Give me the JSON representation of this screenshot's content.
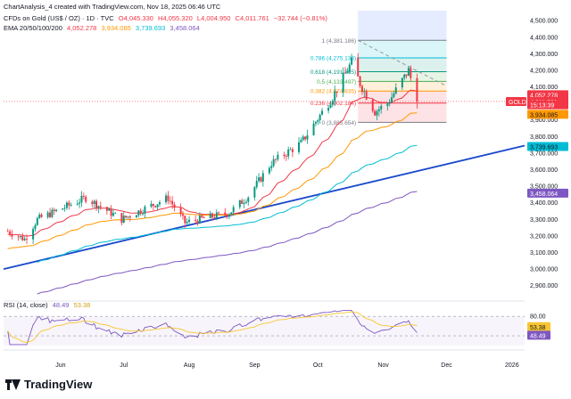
{
  "header": {
    "created_line": "ChartAnalysis_4 created with TradingView.com, Nov 18, 2025 06:46 UTC",
    "symbol": "CFDs on Gold (US$ / OZ) · 1D · TVC",
    "ohlc": {
      "o": "O4,045.330",
      "h": "H4,055.320",
      "l": "L4,004.950",
      "c": "C4,011.761",
      "chg": "−32.744 (−0.81%)"
    },
    "ema_label": "EMA 20/50/100/200",
    "ema_values": [
      "4,052.278",
      "3,934.085",
      "3,739.693",
      "3,458.064"
    ],
    "rsi_label": "RSI (14, close)",
    "rsi_values": [
      "48.49",
      "53.38"
    ]
  },
  "footer": {
    "brand": "TradingView"
  },
  "colors": {
    "up": "#089981",
    "down": "#f23645",
    "ema20": "#f23645",
    "ema50": "#ff9800",
    "ema100": "#00bcd4",
    "ema200": "#7e57c2",
    "trend": "#1848cc",
    "rsi": "#7e57c2",
    "rsi_ma": "#f7c531"
  },
  "chart_data": {
    "type": "candlestick",
    "title": "CFDs on Gold (US$ / OZ) · 1D · TVC",
    "y_ticks": [
      "4,500.000",
      "4,400.000",
      "4,300.000",
      "4,200.000",
      "4,100.000",
      "4,000.000",
      "3,900.000",
      "3,800.000",
      "3,700.000",
      "3,600.000",
      "3,500.000",
      "3,400.000",
      "3,300.000",
      "3,200.000",
      "3,100.000",
      "3,000.000",
      "2,900.000"
    ],
    "y_tick_values": [
      4500,
      4400,
      4300,
      4200,
      4100,
      4000,
      3900,
      3800,
      3700,
      3600,
      3500,
      3400,
      3300,
      3200,
      3100,
      3000,
      2900
    ],
    "ylim": [
      2850,
      4560
    ],
    "x_labels": [
      "Jun",
      "Jul",
      "Aug",
      "Sep",
      "Oct",
      "Nov",
      "Dec",
      "2026"
    ],
    "x_label_dates": [
      "2025-06-01",
      "2025-07-01",
      "2025-08-01",
      "2025-09-01",
      "2025-10-01",
      "2025-11-01",
      "2025-12-01",
      "2026-01-01"
    ],
    "x_range": [
      "2025-05-05",
      "2026-01-07"
    ],
    "key_points": [
      {
        "date": "2025-05-15",
        "close": 3180
      },
      {
        "date": "2025-05-21",
        "close": 3300
      },
      {
        "date": "2025-06-13",
        "close": 3430
      },
      {
        "date": "2025-06-30",
        "close": 3300
      },
      {
        "date": "2025-07-22",
        "close": 3430
      },
      {
        "date": "2025-07-30",
        "close": 3280
      },
      {
        "date": "2025-08-20",
        "close": 3340
      },
      {
        "date": "2025-08-29",
        "close": 3440
      },
      {
        "date": "2025-09-09",
        "close": 3640
      },
      {
        "date": "2025-09-23",
        "close": 3760
      },
      {
        "date": "2025-10-08",
        "close": 4040
      },
      {
        "date": "2025-10-17",
        "close": 4250
      },
      {
        "date": "2025-10-21",
        "close": 4120
      },
      {
        "date": "2025-10-28",
        "close": 3950
      },
      {
        "date": "2025-11-03",
        "close": 4000
      },
      {
        "date": "2025-11-13",
        "close": 4200
      },
      {
        "date": "2025-11-17",
        "close": 4012
      }
    ],
    "fib_levels": [
      {
        "label": "1 (4,381.186)",
        "value": 4381.186,
        "color": "#787b86"
      },
      {
        "label": "0.786 (4,275.138)",
        "value": 4275.138,
        "color": "#00bcd4"
      },
      {
        "label": "0.618 (4,191.805)",
        "value": 4191.805,
        "color": "#089981"
      },
      {
        "label": "0.5 (4,133.497)",
        "value": 4133.497,
        "color": "#4caf50"
      },
      {
        "label": "0.382 (4,074.835)",
        "value": 4074.835,
        "color": "#ff9800"
      },
      {
        "label": "0.236 (4,002.184)",
        "value": 4002.184,
        "color": "#f23645"
      },
      {
        "label": "0 (3,885.654)",
        "value": 3885.654,
        "color": "#787b86"
      }
    ],
    "fib_range": [
      "2025-10-20",
      "2025-12-01"
    ],
    "price_labels": [
      {
        "text": "4,052.278",
        "value": 4052.278,
        "bg": "#f23645",
        "fg": "#ffffff"
      },
      {
        "text": "4,011.761",
        "value": 4011.761,
        "bg": "#f23645",
        "fg": "#ffffff"
      },
      {
        "text": "15:13:39",
        "value": 3992,
        "bg": "#f23645",
        "fg": "#ffffff"
      },
      {
        "text": "3,934.085",
        "value": 3934.085,
        "bg": "#ff9800",
        "fg": "#131722"
      },
      {
        "text": "3,739.693",
        "value": 3739.693,
        "bg": "#00bcd4",
        "fg": "#131722"
      },
      {
        "text": "3,458.064",
        "value": 3458.064,
        "bg": "#7e57c2",
        "fg": "#ffffff"
      }
    ],
    "symbol_tag": "GOLD",
    "rsi": {
      "label": "RSI (14, close)",
      "value": 48.49,
      "ma": 53.38,
      "ticks": [
        "80.00",
        "40.00"
      ],
      "tick_values": [
        80,
        40
      ],
      "ylim": [
        20,
        95
      ]
    }
  }
}
